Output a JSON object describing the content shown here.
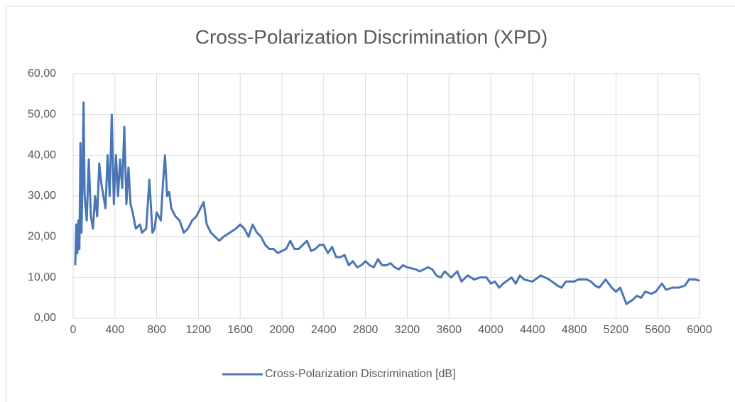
{
  "chart_data": {
    "type": "line",
    "title": "Cross-Polarization Discrimination (XPD)",
    "x": [
      20,
      30,
      40,
      50,
      60,
      70,
      80,
      90,
      100,
      110,
      130,
      150,
      170,
      190,
      210,
      230,
      250,
      270,
      290,
      310,
      330,
      350,
      370,
      390,
      410,
      430,
      450,
      470,
      490,
      510,
      530,
      550,
      570,
      600,
      640,
      660,
      700,
      730,
      760,
      780,
      800,
      840,
      860,
      880,
      900,
      920,
      940,
      980,
      1020,
      1060,
      1100,
      1140,
      1180,
      1220,
      1250,
      1280,
      1320,
      1360,
      1400,
      1440,
      1500,
      1560,
      1600,
      1640,
      1680,
      1720,
      1760,
      1800,
      1840,
      1880,
      1920,
      1960,
      2000,
      2040,
      2080,
      2120,
      2160,
      2200,
      2240,
      2280,
      2320,
      2360,
      2400,
      2440,
      2480,
      2520,
      2560,
      2600,
      2640,
      2680,
      2720,
      2760,
      2800,
      2840,
      2880,
      2920,
      2960,
      3000,
      3040,
      3080,
      3120,
      3160,
      3200,
      3280,
      3320,
      3400,
      3440,
      3480,
      3520,
      3560,
      3620,
      3680,
      3720,
      3780,
      3840,
      3900,
      3960,
      4000,
      4040,
      4080,
      4120,
      4200,
      4240,
      4280,
      4320,
      4400,
      4480,
      4560,
      4640,
      4680,
      4720,
      4800,
      4840,
      4920,
      4960,
      5000,
      5040,
      5100,
      5160,
      5200,
      5240,
      5300,
      5360,
      5400,
      5440,
      5480,
      5540,
      5580,
      5640,
      5680,
      5740,
      5800,
      5860,
      5900,
      5960,
      6000
    ],
    "series": [
      {
        "name": "Cross-Polarization Discrimination [dB]",
        "color": "#4a76b5",
        "values": [
          13,
          23,
          16,
          24,
          17,
          43,
          21,
          35,
          53,
          30,
          24,
          39,
          25,
          22,
          30,
          25,
          38,
          33,
          30,
          27,
          40,
          30,
          50,
          28,
          40,
          30,
          39,
          32,
          47,
          28,
          37,
          28,
          26,
          22,
          23,
          21,
          22,
          34,
          21,
          22,
          26,
          24,
          33,
          40,
          30,
          31,
          27,
          25,
          24,
          21,
          22,
          24,
          25,
          27,
          28.5,
          23,
          21,
          20,
          19,
          20,
          21,
          22,
          23,
          22,
          20,
          23,
          21,
          20,
          18,
          17,
          17,
          16,
          16.5,
          17,
          19,
          17,
          17,
          18,
          19,
          16.5,
          17,
          18,
          18,
          16,
          17.5,
          15,
          15,
          15.5,
          13,
          14,
          12.5,
          13,
          14,
          13,
          12.5,
          14.5,
          13,
          13,
          13.5,
          12.5,
          12,
          13,
          12.5,
          12,
          11.5,
          12.5,
          12,
          10.5,
          10,
          11.5,
          10,
          11.5,
          9,
          10.5,
          9.5,
          10,
          10,
          8.5,
          9,
          7.5,
          8.5,
          10,
          8.5,
          10.5,
          9.5,
          9,
          10.5,
          9.5,
          8,
          7.5,
          9,
          9,
          9.5,
          9.5,
          9,
          8,
          7.5,
          9.5,
          7.5,
          6.5,
          7.5,
          3.5,
          4.5,
          5.5,
          5,
          6.5,
          6,
          6.5,
          8.5,
          7,
          7.5,
          7.5,
          8,
          9.5,
          9.5,
          9.2
        ]
      }
    ],
    "xlim": [
      0,
      6000
    ],
    "xticks": [
      0,
      400,
      800,
      1200,
      1600,
      2000,
      2400,
      2800,
      3200,
      3600,
      4000,
      4400,
      4800,
      5200,
      5600,
      6000
    ],
    "ylim": [
      0,
      60
    ],
    "yticks": [
      {
        "value": 0,
        "label": "0,00"
      },
      {
        "value": 10,
        "label": "10,00"
      },
      {
        "value": 20,
        "label": "20,00"
      },
      {
        "value": 30,
        "label": "30,00"
      },
      {
        "value": 40,
        "label": "40,00"
      },
      {
        "value": 50,
        "label": "50,00"
      },
      {
        "value": 60,
        "label": "60,00"
      }
    ],
    "grid": true,
    "legend": "bottom"
  }
}
